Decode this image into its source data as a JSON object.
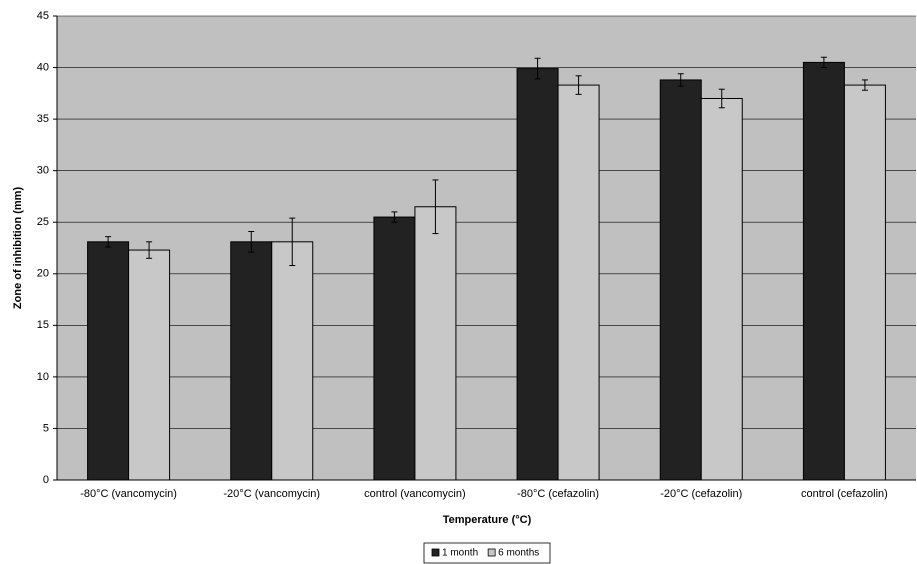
{
  "chart_data": {
    "type": "bar",
    "x_label": "Temperature (°C)",
    "y_label": "Zone of inhibition (mm)",
    "categories": [
      "-80°C (vancomycin)",
      "-20°C (vancomycin)",
      "control (vancomycin)",
      "-80°C (cefazolin)",
      "-20°C (cefazolin)",
      "control (cefazolin)"
    ],
    "series": [
      {
        "name": "1 month",
        "color": "#222222",
        "values": [
          23.1,
          23.1,
          25.5,
          39.9,
          38.8,
          40.5
        ],
        "errors": [
          0.5,
          1.0,
          0.5,
          1.0,
          0.6,
          0.5
        ]
      },
      {
        "name": "6 months",
        "color": "#c8c8c8",
        "values": [
          22.3,
          23.1,
          26.5,
          38.3,
          37.0,
          38.3
        ],
        "errors": [
          0.8,
          2.3,
          2.6,
          0.9,
          0.9,
          0.5
        ]
      }
    ],
    "ylim": [
      0,
      45
    ],
    "yticks": [
      0,
      5,
      10,
      15,
      20,
      25,
      30,
      35,
      40,
      45
    ],
    "grid": true,
    "legend": "bottom",
    "plot_background": "#c0c0c0"
  }
}
